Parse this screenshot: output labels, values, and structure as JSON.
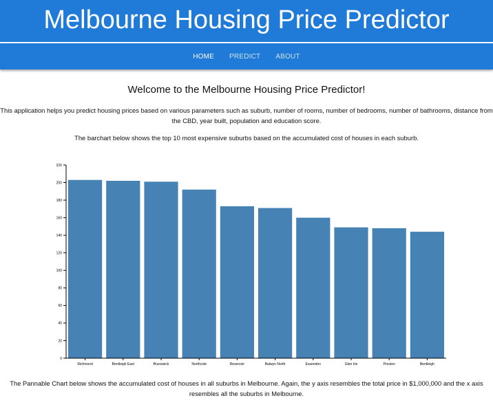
{
  "header": {
    "title": "Melbourne Housing Price Predictor"
  },
  "nav": {
    "items": [
      {
        "label": "HOME",
        "active": true
      },
      {
        "label": "PREDICT",
        "active": false
      },
      {
        "label": "ABOUT",
        "active": false
      }
    ]
  },
  "main": {
    "heading": "Welcome to the Melbourne Housing Price Predictor!",
    "intro": "This application helps you predict housing prices based on various parameters such as suburb, number of rooms, number of bedrooms, number of bathrooms, distance from the CBD, year built, population and education score.",
    "chart_intro": "The barchart below shows the top 10 most expensive suburbs based on the accumulated cost of houses in each suburb.",
    "pannable_intro": "The Pannable Chart below shows the accumulated cost of houses in all suburbs in Melbourne. Again, the y axis resembles the total price in $1,000,000 and the x axis resembles all the suburbs in Melbourne."
  },
  "colors": {
    "header_bg": "#1f7ad8",
    "bar": "#4682b4"
  },
  "chart_data": {
    "type": "bar",
    "categories": [
      "Richmond",
      "Bentleigh East",
      "Brunswick",
      "Northcote",
      "Reservoir",
      "Balwyn North",
      "Essendon",
      "Glen Iris",
      "Preston",
      "Bentleigh"
    ],
    "values": [
      203,
      202,
      201,
      192,
      173,
      171,
      160,
      149,
      148,
      144
    ],
    "ylim": [
      0,
      220
    ],
    "yticks": [
      0,
      20,
      40,
      60,
      80,
      100,
      120,
      140,
      160,
      180,
      200,
      220
    ],
    "title": "",
    "xlabel": "",
    "ylabel": "",
    "grid": false
  }
}
